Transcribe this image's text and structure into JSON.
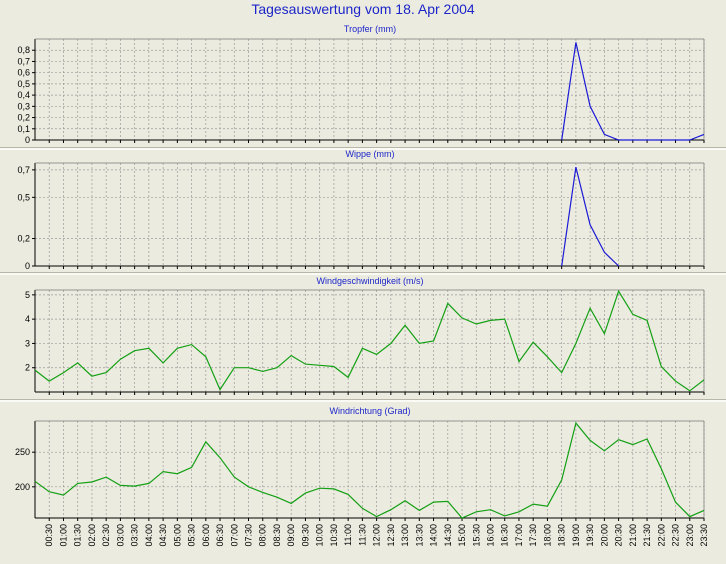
{
  "page": {
    "title": "Tagesauswertung vom 18. Apr 2004"
  },
  "colors": {
    "title": "#1c26c8",
    "series_blue": "#1a1ad6",
    "series_green": "#14a014",
    "grid": "#9a9a9a",
    "panel_bg": "#ecebe0"
  },
  "time_labels": [
    "00:30",
    "01:00",
    "01:30",
    "02:00",
    "02:30",
    "03:00",
    "03:30",
    "04:00",
    "04:30",
    "05:00",
    "05:30",
    "06:00",
    "06:30",
    "07:00",
    "07:30",
    "08:00",
    "08:30",
    "09:00",
    "09:30",
    "10:00",
    "10:30",
    "11:00",
    "11:30",
    "12:00",
    "12:30",
    "13:00",
    "13:30",
    "14:00",
    "14:30",
    "15:00",
    "15:30",
    "16:00",
    "16:30",
    "17:00",
    "17:30",
    "18:00",
    "18:30",
    "19:00",
    "19:30",
    "20:00",
    "20:30",
    "21:00",
    "21:30",
    "22:00",
    "22:30",
    "23:00",
    "23:30"
  ],
  "chart_data": [
    {
      "type": "line",
      "title": "Tropfer (mm)",
      "ylim": [
        0,
        0.9
      ],
      "yticks": [
        0,
        0.1,
        0.2,
        0.3,
        0.4,
        0.5,
        0.6,
        0.7,
        0.8
      ],
      "ytick_labels": [
        "0",
        "0,1",
        "0,2",
        "0,3",
        "0,4",
        "0,5",
        "0,6",
        "0,7",
        "0,8"
      ],
      "grid": true,
      "x": [
        "00:00",
        "00:30",
        "01:00",
        "01:30",
        "02:00",
        "02:30",
        "03:00",
        "03:30",
        "04:00",
        "04:30",
        "05:00",
        "05:30",
        "06:00",
        "06:30",
        "07:00",
        "07:30",
        "08:00",
        "08:30",
        "09:00",
        "09:30",
        "10:00",
        "10:30",
        "11:00",
        "11:30",
        "12:00",
        "12:30",
        "13:00",
        "13:30",
        "14:00",
        "14:30",
        "15:00",
        "15:30",
        "16:00",
        "16:30",
        "17:00",
        "17:30",
        "18:00",
        "18:30",
        "19:00",
        "19:30",
        "20:00",
        "20:30",
        "21:00",
        "21:30",
        "22:00",
        "22:30",
        "23:00",
        "23:30"
      ],
      "values": [
        null,
        null,
        null,
        null,
        null,
        null,
        null,
        null,
        null,
        null,
        null,
        null,
        null,
        null,
        null,
        null,
        null,
        null,
        null,
        null,
        null,
        null,
        null,
        null,
        null,
        null,
        null,
        null,
        null,
        null,
        null,
        null,
        null,
        null,
        null,
        null,
        null,
        0,
        0.87,
        0.3,
        0.05,
        0,
        0,
        0,
        0,
        0,
        0,
        0.05
      ],
      "color": "#1a1ad6"
    },
    {
      "type": "line",
      "title": "Wippe (mm)",
      "ylim": [
        0,
        0.75
      ],
      "yticks": [
        0,
        0.2,
        0.5,
        0.7
      ],
      "ytick_labels": [
        "0",
        "0,2",
        "0,5",
        "0,7"
      ],
      "grid": true,
      "x": [
        "00:00",
        "00:30",
        "01:00",
        "01:30",
        "02:00",
        "02:30",
        "03:00",
        "03:30",
        "04:00",
        "04:30",
        "05:00",
        "05:30",
        "06:00",
        "06:30",
        "07:00",
        "07:30",
        "08:00",
        "08:30",
        "09:00",
        "09:30",
        "10:00",
        "10:30",
        "11:00",
        "11:30",
        "12:00",
        "12:30",
        "13:00",
        "13:30",
        "14:00",
        "14:30",
        "15:00",
        "15:30",
        "16:00",
        "16:30",
        "17:00",
        "17:30",
        "18:00",
        "18:30",
        "19:00",
        "19:30",
        "20:00",
        "20:30",
        "21:00",
        "21:30",
        "22:00",
        "22:30",
        "23:00",
        "23:30"
      ],
      "values": [
        null,
        null,
        null,
        null,
        null,
        null,
        null,
        null,
        null,
        null,
        null,
        null,
        null,
        null,
        null,
        null,
        null,
        null,
        null,
        null,
        null,
        null,
        null,
        null,
        null,
        null,
        null,
        null,
        null,
        null,
        null,
        null,
        null,
        null,
        null,
        null,
        null,
        0,
        0.72,
        0.3,
        0.1,
        0,
        null,
        null,
        null,
        null,
        null,
        null
      ],
      "color": "#1a1ad6"
    },
    {
      "type": "line",
      "title": "Windgeschwindigkeit (m/s)",
      "ylim": [
        1,
        5.2
      ],
      "yticks": [
        2,
        3,
        4,
        5
      ],
      "ytick_labels": [
        "2",
        "3",
        "4",
        "5"
      ],
      "grid": true,
      "x": [
        "00:00",
        "00:30",
        "01:00",
        "01:30",
        "02:00",
        "02:30",
        "03:00",
        "03:30",
        "04:00",
        "04:30",
        "05:00",
        "05:30",
        "06:00",
        "06:30",
        "07:00",
        "07:30",
        "08:00",
        "08:30",
        "09:00",
        "09:30",
        "10:00",
        "10:30",
        "11:00",
        "11:30",
        "12:00",
        "12:30",
        "13:00",
        "13:30",
        "14:00",
        "14:30",
        "15:00",
        "15:30",
        "16:00",
        "16:30",
        "17:00",
        "17:30",
        "18:00",
        "18:30",
        "19:00",
        "19:30",
        "20:00",
        "20:30",
        "21:00",
        "21:30",
        "22:00",
        "22:30",
        "23:00",
        "23:30"
      ],
      "values": [
        1.9,
        1.45,
        1.8,
        2.2,
        1.65,
        1.8,
        2.35,
        2.7,
        2.8,
        2.2,
        2.8,
        2.95,
        2.45,
        1.1,
        2.0,
        2.0,
        1.85,
        2.0,
        2.5,
        2.15,
        2.1,
        2.05,
        1.6,
        2.8,
        2.55,
        3.0,
        3.75,
        3.0,
        3.1,
        4.65,
        4.05,
        3.8,
        3.95,
        4.0,
        2.25,
        3.05,
        2.45,
        1.8,
        3.0,
        4.45,
        3.4,
        5.15,
        4.2,
        3.95,
        2.05,
        1.45,
        1.05,
        1.5
      ],
      "color": "#14a014"
    },
    {
      "type": "line",
      "title": "Windrichtung (Grad)",
      "ylim": [
        155,
        295
      ],
      "yticks": [
        200,
        250
      ],
      "ytick_labels": [
        "200",
        "250"
      ],
      "grid": true,
      "x": [
        "00:00",
        "00:30",
        "01:00",
        "01:30",
        "02:00",
        "02:30",
        "03:00",
        "03:30",
        "04:00",
        "04:30",
        "05:00",
        "05:30",
        "06:00",
        "06:30",
        "07:00",
        "07:30",
        "08:00",
        "08:30",
        "09:00",
        "09:30",
        "10:00",
        "10:30",
        "11:00",
        "11:30",
        "12:00",
        "12:30",
        "13:00",
        "13:30",
        "14:00",
        "14:30",
        "15:00",
        "15:30",
        "16:00",
        "16:30",
        "17:00",
        "17:30",
        "18:00",
        "18:30",
        "19:00",
        "19:30",
        "20:00",
        "20:30",
        "21:00",
        "21:30",
        "22:00",
        "22:30",
        "23:00",
        "23:30"
      ],
      "values": [
        208,
        193,
        188,
        205,
        207,
        214,
        202,
        201,
        205,
        222,
        219,
        228,
        265,
        242,
        214,
        200,
        192,
        185,
        176,
        191,
        198,
        197,
        189,
        169,
        157,
        167,
        180,
        166,
        178,
        179,
        155,
        164,
        167,
        158,
        164,
        175,
        172,
        210,
        292,
        267,
        252,
        268,
        261,
        269,
        226,
        178,
        157,
        166
      ],
      "color": "#14a014"
    }
  ]
}
